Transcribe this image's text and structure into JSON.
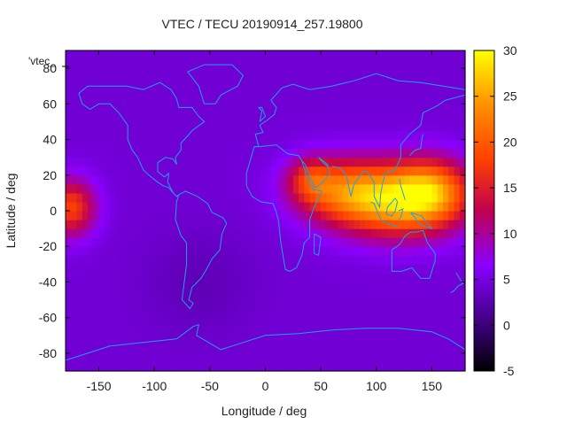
{
  "chart_data": {
    "type": "heatmap",
    "title": "VTEC / TECU 20190914_257.19800",
    "xlabel": "Longitude / deg",
    "ylabel": "Latitude / deg",
    "xlim": [
      -180,
      180
    ],
    "ylim": [
      -90,
      90
    ],
    "x_ticks": [
      -150,
      -100,
      -50,
      0,
      50,
      100,
      150
    ],
    "y_ticks": [
      -80,
      -60,
      -40,
      -20,
      0,
      20,
      40,
      60,
      80
    ],
    "colorbar": {
      "range": [
        -5,
        30
      ],
      "ticks": [
        -5,
        0,
        5,
        10,
        15,
        20,
        25,
        30
      ]
    },
    "legend_label": "'vtec_",
    "grid": false,
    "colors": {
      "coastline": "#1ea0e6",
      "palette": [
        "#000000",
        "#3a0078",
        "#8a00ff",
        "#c00050",
        "#ff4000",
        "#ff9000",
        "#ffff00"
      ]
    },
    "field_features": [
      {
        "lon": 118,
        "lat": 5,
        "lon_width": 55,
        "lat_width": 20,
        "value": 22
      },
      {
        "lon": 70,
        "lat": 12,
        "lon_width": 45,
        "lat_width": 18,
        "value": 17
      },
      {
        "lon": 150,
        "lat": 12,
        "lon_width": 35,
        "lat_width": 18,
        "value": 18
      },
      {
        "lon": -175,
        "lat": 2,
        "lon_width": 22,
        "lat_width": 16,
        "value": 18
      },
      {
        "lon": 40,
        "lat": 18,
        "lon_width": 20,
        "lat_width": 12,
        "value": 12
      }
    ],
    "background_value": 4.5,
    "min_value_region": {
      "lon": -60,
      "lat": -40,
      "value": 3
    }
  }
}
